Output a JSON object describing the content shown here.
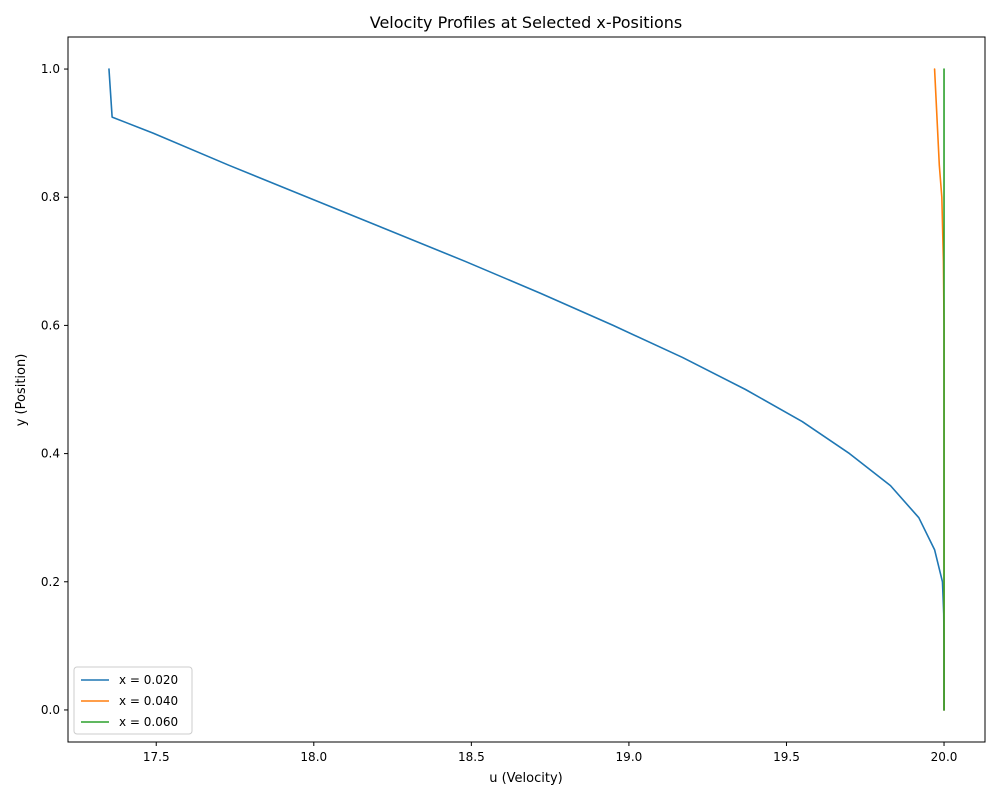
{
  "chart_data": {
    "type": "line",
    "title": "Velocity Profiles at Selected x-Positions",
    "xlabel": "u (Velocity)",
    "ylabel": "y (Position)",
    "xlim": [
      17.22,
      20.13
    ],
    "ylim": [
      -0.05,
      1.05
    ],
    "xticks": [
      "17.5",
      "18.0",
      "18.5",
      "19.0",
      "19.5",
      "20.0"
    ],
    "xtick_values": [
      17.5,
      18.0,
      18.5,
      19.0,
      19.5,
      20.0
    ],
    "yticks": [
      "0.0",
      "0.2",
      "0.4",
      "0.6",
      "0.8",
      "1.0"
    ],
    "ytick_values": [
      0.0,
      0.2,
      0.4,
      0.6,
      0.8,
      1.0
    ],
    "grid": false,
    "legend_position": "lower-left",
    "series": [
      {
        "name": "x = 0.020",
        "color": "#1f77b4",
        "points": [
          [
            20.0,
            0.0
          ],
          [
            20.0,
            0.05
          ],
          [
            20.0,
            0.1
          ],
          [
            19.999,
            0.15
          ],
          [
            19.995,
            0.2
          ],
          [
            19.97,
            0.25
          ],
          [
            19.92,
            0.3
          ],
          [
            19.83,
            0.35
          ],
          [
            19.7,
            0.4
          ],
          [
            19.55,
            0.45
          ],
          [
            19.37,
            0.5
          ],
          [
            19.17,
            0.55
          ],
          [
            18.95,
            0.6
          ],
          [
            18.72,
            0.65
          ],
          [
            18.48,
            0.7
          ],
          [
            18.23,
            0.75
          ],
          [
            17.98,
            0.8
          ],
          [
            17.73,
            0.85
          ],
          [
            17.49,
            0.9
          ],
          [
            17.36,
            0.925
          ],
          [
            17.35,
            1.0
          ]
        ]
      },
      {
        "name": "x = 0.040",
        "color": "#ff7f0e",
        "points": [
          [
            20.0,
            0.0
          ],
          [
            20.0,
            0.2
          ],
          [
            20.0,
            0.4
          ],
          [
            20.0,
            0.6
          ],
          [
            19.998,
            0.7
          ],
          [
            19.993,
            0.8
          ],
          [
            19.985,
            0.85
          ],
          [
            19.975,
            0.95
          ],
          [
            19.97,
            1.0
          ]
        ]
      },
      {
        "name": "x = 0.060",
        "color": "#2ca02c",
        "points": [
          [
            20.0,
            0.0
          ],
          [
            20.0,
            0.5
          ],
          [
            20.0,
            1.0
          ]
        ]
      }
    ]
  }
}
